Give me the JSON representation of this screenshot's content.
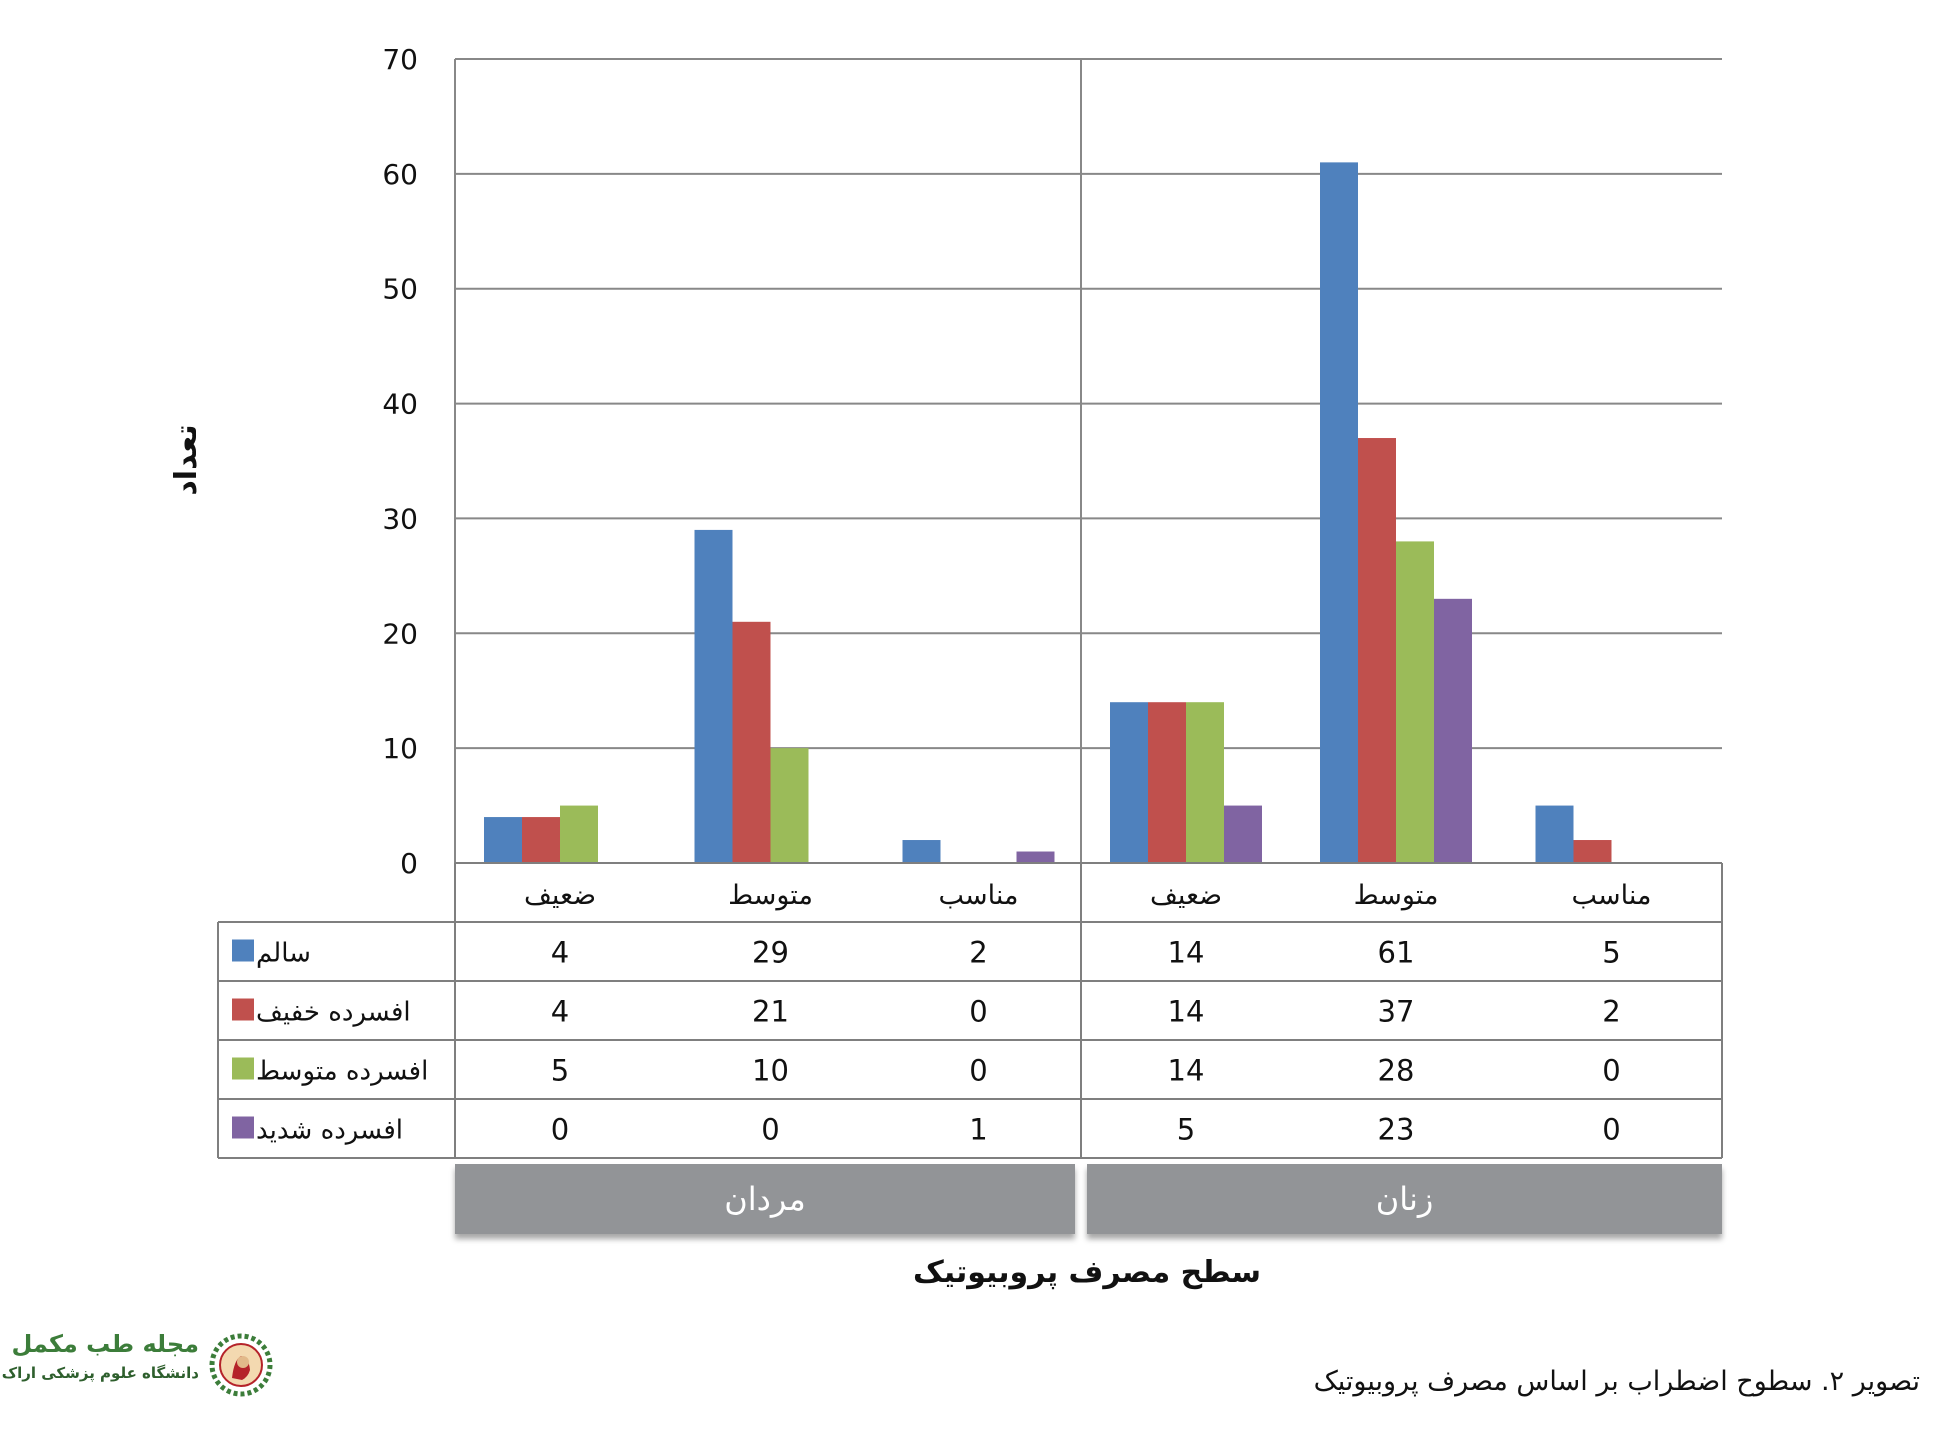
{
  "chart_data": {
    "type": "bar",
    "ylabel": "تعداد",
    "xlabel": "سطح مصرف پروبیوتیک",
    "ylim": [
      0,
      70
    ],
    "yticks": [
      "0",
      "10",
      "20",
      "30",
      "40",
      "50",
      "60",
      "70"
    ],
    "groups": [
      "مردان",
      "زنان"
    ],
    "categories": [
      "ضعیف",
      "متوسط",
      "مناسب",
      "ضعیف",
      "متوسط",
      "مناسب"
    ],
    "series": [
      {
        "name": "سالم",
        "color": "#4f81bd",
        "values": [
          4,
          29,
          2,
          14,
          61,
          5
        ]
      },
      {
        "name": "افسرده خفیف",
        "color": "#c0504d",
        "values": [
          4,
          21,
          0,
          14,
          37,
          2
        ]
      },
      {
        "name": "افسرده متوسط",
        "color": "#9bbb59",
        "values": [
          5,
          10,
          0,
          14,
          28,
          0
        ]
      },
      {
        "name": "افسرده شدید",
        "color": "#8064a2",
        "values": [
          0,
          0,
          1,
          5,
          23,
          0
        ]
      }
    ],
    "grid": true,
    "legend": "data-table"
  },
  "caption": "تصویر ۲. سطوح اضطراب بر اساس مصرف پروبیوتیک",
  "logo": {
    "title": "مجله طب مکمل",
    "subtitle": "دانشگاه علوم پزشکی اراک"
  },
  "colors": {
    "group_band": "#929497",
    "grid": "#888888",
    "seal": "#b5232a"
  }
}
